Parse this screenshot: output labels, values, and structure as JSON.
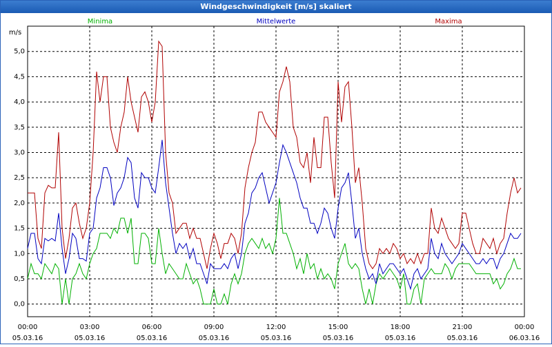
{
  "chart_data": {
    "type": "line",
    "title": "Windgeschwindigkeit [m/s] skaliert",
    "y_label": "m/s",
    "x": [
      0,
      10,
      20,
      30,
      40,
      50,
      60,
      70,
      80,
      90,
      100,
      110,
      120,
      130,
      140,
      150,
      160,
      170,
      180,
      190,
      200,
      210,
      220,
      230,
      240,
      250,
      260,
      270,
      280,
      290,
      300,
      310,
      320,
      330,
      340,
      350,
      360,
      370,
      380,
      390,
      400,
      410,
      420,
      430,
      440,
      450,
      460,
      470,
      480,
      490,
      500,
      510,
      520,
      530,
      540,
      550,
      560,
      570,
      580,
      590,
      600,
      610,
      620,
      630,
      640,
      650,
      660,
      670,
      680,
      690,
      700,
      710,
      720,
      730,
      740,
      750,
      760,
      770,
      780,
      790,
      800,
      810,
      820,
      830,
      840,
      850,
      860,
      870,
      880,
      890,
      900,
      910,
      920,
      930,
      940,
      950,
      960,
      970,
      980,
      990,
      1000,
      1010,
      1020,
      1030,
      1040,
      1050,
      1060,
      1070,
      1080,
      1090,
      1100,
      1110,
      1120,
      1130,
      1140,
      1150,
      1160,
      1170,
      1180,
      1190,
      1200,
      1210,
      1220,
      1230,
      1240,
      1250,
      1260,
      1270,
      1280,
      1290,
      1300,
      1310,
      1320,
      1330,
      1340,
      1350,
      1360,
      1370,
      1380,
      1390,
      1400,
      1410,
      1420,
      1430
    ],
    "series": [
      {
        "name": "Minima",
        "color": "#00b000",
        "values": [
          0.5,
          0.8,
          0.6,
          0.6,
          0.5,
          0.8,
          0.7,
          0.6,
          0.8,
          0.7,
          0.0,
          0.5,
          0.0,
          0.5,
          0.6,
          0.8,
          0.6,
          0.5,
          0.8,
          1.0,
          1.1,
          1.4,
          1.4,
          1.4,
          1.3,
          1.5,
          1.4,
          1.7,
          1.7,
          1.4,
          1.7,
          0.8,
          0.8,
          1.4,
          1.4,
          1.3,
          0.8,
          0.8,
          1.5,
          1.0,
          0.6,
          0.8,
          0.7,
          0.6,
          0.5,
          0.5,
          0.8,
          0.6,
          0.4,
          0.5,
          0.3,
          0.0,
          0.0,
          0.0,
          0.3,
          0.0,
          0.0,
          0.2,
          0.0,
          0.4,
          0.6,
          0.4,
          0.6,
          1.0,
          1.2,
          1.3,
          1.2,
          1.1,
          1.3,
          1.1,
          1.2,
          1.0,
          1.3,
          2.1,
          1.4,
          1.4,
          1.2,
          1.0,
          0.7,
          0.9,
          0.6,
          1.0,
          0.7,
          0.8,
          0.5,
          0.7,
          0.5,
          0.6,
          0.5,
          0.3,
          0.8,
          1.0,
          1.2,
          0.8,
          0.7,
          0.8,
          0.7,
          0.3,
          0.0,
          0.3,
          0.0,
          0.4,
          0.6,
          0.5,
          0.6,
          0.7,
          0.6,
          0.5,
          0.3,
          0.6,
          0.0,
          0.0,
          0.3,
          0.4,
          0.0,
          0.5,
          0.6,
          0.7,
          0.6,
          0.6,
          0.6,
          0.8,
          0.7,
          0.5,
          0.7,
          0.8,
          0.8,
          0.8,
          0.8,
          0.7,
          0.6,
          0.6,
          0.6,
          0.6,
          0.6,
          0.4,
          0.5,
          0.3,
          0.4,
          0.6,
          0.7,
          0.9,
          0.7,
          0.7
        ]
      },
      {
        "name": "Mittelwerte",
        "color": "#0000c0",
        "values": [
          1.1,
          1.4,
          1.4,
          0.9,
          0.8,
          1.3,
          1.25,
          1.3,
          1.25,
          1.8,
          1.1,
          0.6,
          0.9,
          1.4,
          1.3,
          0.9,
          0.9,
          0.85,
          1.4,
          1.5,
          2.1,
          2.3,
          2.7,
          2.7,
          2.5,
          1.95,
          2.2,
          2.3,
          2.5,
          2.9,
          2.8,
          2.1,
          1.9,
          2.6,
          2.5,
          2.5,
          2.3,
          2.2,
          2.7,
          3.25,
          2.4,
          1.9,
          1.4,
          1.0,
          1.2,
          1.1,
          1.2,
          0.9,
          1.1,
          0.8,
          0.8,
          0.6,
          0.4,
          0.8,
          0.7,
          0.7,
          0.7,
          0.8,
          0.7,
          0.9,
          1.0,
          0.7,
          1.0,
          1.6,
          1.8,
          2.2,
          2.3,
          2.5,
          2.6,
          2.3,
          2.0,
          2.2,
          2.4,
          2.8,
          3.15,
          3.0,
          2.8,
          2.6,
          2.4,
          2.1,
          1.9,
          1.9,
          1.6,
          1.6,
          1.4,
          1.6,
          1.9,
          1.8,
          1.5,
          1.3,
          1.9,
          2.3,
          2.4,
          2.6,
          2.0,
          1.3,
          1.5,
          1.0,
          0.7,
          0.5,
          0.6,
          0.4,
          0.8,
          0.6,
          0.7,
          0.8,
          0.8,
          0.7,
          0.6,
          0.7,
          0.5,
          0.3,
          0.6,
          0.7,
          0.5,
          0.6,
          0.7,
          1.3,
          1.0,
          0.9,
          1.2,
          1.0,
          0.9,
          0.8,
          0.9,
          1.0,
          1.2,
          1.1,
          1.0,
          0.9,
          0.8,
          0.8,
          0.9,
          0.8,
          0.9,
          0.9,
          0.7,
          0.9,
          1.0,
          1.2,
          1.4,
          1.3,
          1.3,
          1.4
        ]
      },
      {
        "name": "Maxima",
        "color": "#b00000",
        "values": [
          2.2,
          2.2,
          2.2,
          1.3,
          1.1,
          2.2,
          2.35,
          2.3,
          2.3,
          3.4,
          1.5,
          0.9,
          1.3,
          1.9,
          2.0,
          1.6,
          1.3,
          1.5,
          2.0,
          3.0,
          4.6,
          4.0,
          4.5,
          4.5,
          3.5,
          3.2,
          3.0,
          3.5,
          3.8,
          4.5,
          4.0,
          3.7,
          3.4,
          4.1,
          4.2,
          4.0,
          3.6,
          4.0,
          5.2,
          5.1,
          3.0,
          2.2,
          2.0,
          1.4,
          1.5,
          1.6,
          1.6,
          1.3,
          1.5,
          1.3,
          1.3,
          1.0,
          0.7,
          1.1,
          1.4,
          1.2,
          0.9,
          1.2,
          1.2,
          1.4,
          1.3,
          1.0,
          1.4,
          2.3,
          2.7,
          3.0,
          3.2,
          3.8,
          3.8,
          3.6,
          3.5,
          3.4,
          3.3,
          4.2,
          4.4,
          4.7,
          4.4,
          3.5,
          3.3,
          2.8,
          2.7,
          3.0,
          2.4,
          3.3,
          2.7,
          2.7,
          3.7,
          3.7,
          2.8,
          2.1,
          4.4,
          3.6,
          4.3,
          4.4,
          3.5,
          2.4,
          2.7,
          2.0,
          1.1,
          0.8,
          0.7,
          0.8,
          1.1,
          1.0,
          1.1,
          1.0,
          1.2,
          1.1,
          0.9,
          1.0,
          0.8,
          0.9,
          0.8,
          1.0,
          0.8,
          1.0,
          1.0,
          1.9,
          1.5,
          1.4,
          1.7,
          1.5,
          1.3,
          1.2,
          1.1,
          1.2,
          1.8,
          1.8,
          1.5,
          1.2,
          1.0,
          1.0,
          1.3,
          1.2,
          1.1,
          1.3,
          1.0,
          1.2,
          1.3,
          1.8,
          2.2,
          2.5,
          2.2,
          2.3
        ]
      }
    ],
    "xlim": [
      0,
      1440
    ],
    "xticks": [
      {
        "value": 0,
        "label": "00:00",
        "date": "05.03.16"
      },
      {
        "value": 180,
        "label": "03:00",
        "date": "05.03.16"
      },
      {
        "value": 360,
        "label": "06:00",
        "date": "05.03.16"
      },
      {
        "value": 540,
        "label": "09:00",
        "date": "05.03.16"
      },
      {
        "value": 720,
        "label": "12:00",
        "date": "05.03.16"
      },
      {
        "value": 900,
        "label": "15:00",
        "date": "05.03.16"
      },
      {
        "value": 1080,
        "label": "18:00",
        "date": "05.03.16"
      },
      {
        "value": 1260,
        "label": "21:00",
        "date": "05.03.16"
      },
      {
        "value": 1440,
        "label": "00:00",
        "date": "06.03.16"
      }
    ],
    "ylim": [
      -0.25,
      5.5
    ],
    "yticks": [
      {
        "value": 0,
        "label": "0,0"
      },
      {
        "value": 0.5,
        "label": "0,5"
      },
      {
        "value": 1,
        "label": "1,0"
      },
      {
        "value": 1.5,
        "label": "1,5"
      },
      {
        "value": 2,
        "label": "2,0"
      },
      {
        "value": 2.5,
        "label": "2,5"
      },
      {
        "value": 3,
        "label": "3,0"
      },
      {
        "value": 3.5,
        "label": "3,5"
      },
      {
        "value": 4,
        "label": "4,0"
      },
      {
        "value": 4.5,
        "label": "4,5"
      },
      {
        "value": 5,
        "label": "5,0"
      }
    ],
    "grid": true
  }
}
